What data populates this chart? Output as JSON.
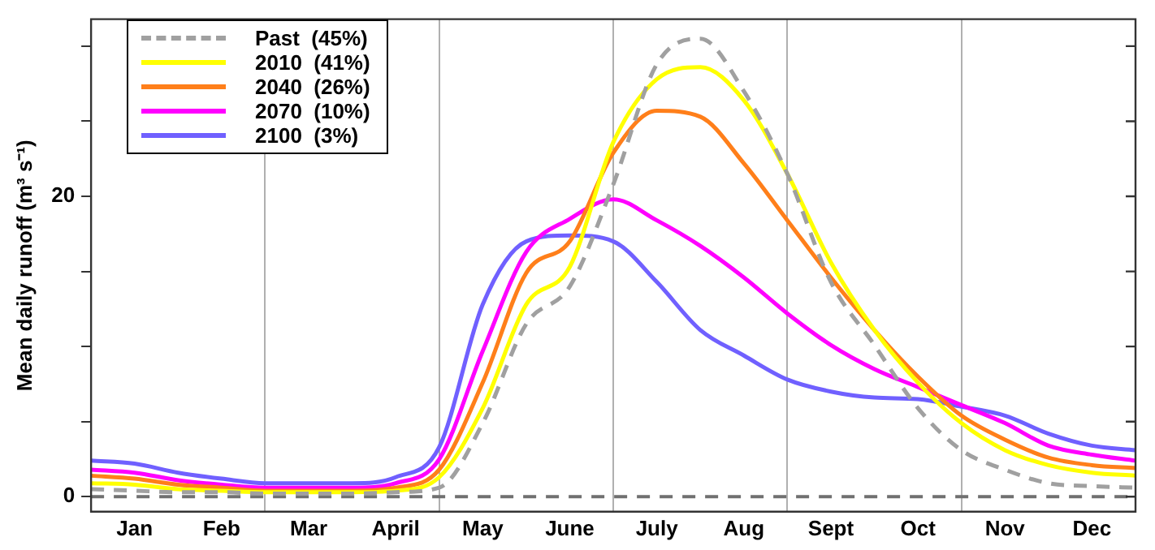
{
  "chart_data": {
    "type": "line",
    "ylabel": "Mean daily runoff (m³ s⁻¹)",
    "categories": [
      null,
      "Jan",
      null,
      "Feb",
      null,
      "Mar",
      null,
      "April",
      null,
      "May",
      null,
      "June",
      null,
      "July",
      null,
      "Aug",
      null,
      "Sept",
      null,
      "Oct",
      null,
      "Nov",
      null,
      "Dec",
      null
    ],
    "series": [
      {
        "name": "Past  (45%)",
        "color": "#a0a0a0",
        "line_style": "dashed",
        "values": [
          0.5,
          0.4,
          0.3,
          0.3,
          0.2,
          0.2,
          0.2,
          0.3,
          0.6,
          4.9,
          11.5,
          14,
          20.8,
          28.8,
          30.5,
          27,
          21.5,
          14.3,
          10.1,
          5.9,
          3.1,
          1.8,
          0.9,
          0.7,
          0.6
        ]
      },
      {
        "name": "2010  (41%)",
        "color": "#ffff00",
        "values": [
          0.9,
          0.8,
          0.5,
          0.4,
          0.3,
          0.3,
          0.3,
          0.4,
          1.3,
          5.9,
          12.8,
          15.3,
          23.6,
          27.8,
          28.6,
          26.4,
          21.5,
          15.6,
          11.1,
          7.6,
          4.9,
          3.1,
          2.1,
          1.6,
          1.4
        ]
      },
      {
        "name": "2040  (26%)",
        "color": "#ff7f1a",
        "values": [
          1.4,
          1.2,
          0.8,
          0.6,
          0.4,
          0.4,
          0.4,
          0.6,
          1.8,
          7.6,
          14.9,
          17,
          22.9,
          25.7,
          25.3,
          22.2,
          18.4,
          14.6,
          11.1,
          8,
          5.4,
          3.8,
          2.6,
          2.1,
          1.9
        ]
      },
      {
        "name": "2070  (10%)",
        "color": "#ff00ff",
        "values": [
          1.8,
          1.6,
          1.1,
          0.8,
          0.6,
          0.6,
          0.6,
          0.9,
          2.5,
          9.7,
          16.3,
          18.5,
          19.8,
          18.4,
          16.7,
          14.6,
          12.2,
          10.1,
          8.5,
          7.3,
          6.1,
          4.9,
          3.4,
          2.8,
          2.4
        ]
      },
      {
        "name": "2100  (3%)",
        "color": "#7060ff",
        "values": [
          2.4,
          2.2,
          1.6,
          1.2,
          0.9,
          0.9,
          0.9,
          1.3,
          3.3,
          12.8,
          17,
          17.4,
          17,
          14.3,
          11.1,
          9.4,
          7.8,
          7,
          6.6,
          6.5,
          6,
          5.4,
          4.2,
          3.4,
          3.1
        ]
      }
    ],
    "ylim": [
      -1,
      31.8
    ],
    "yticks": [
      0,
      {
        "value": 5,
        "label": null
      },
      {
        "value": 10,
        "label": null
      },
      {
        "value": 15,
        "label": null
      },
      20,
      {
        "value": 25,
        "label": null
      },
      {
        "value": 30,
        "label": null
      }
    ],
    "ref_lines": [
      {
        "axis": "y",
        "value": 0,
        "color": "#707070",
        "line_style": "dashed"
      }
    ],
    "legend": "top left",
    "grid": "x",
    "marker": "none"
  }
}
